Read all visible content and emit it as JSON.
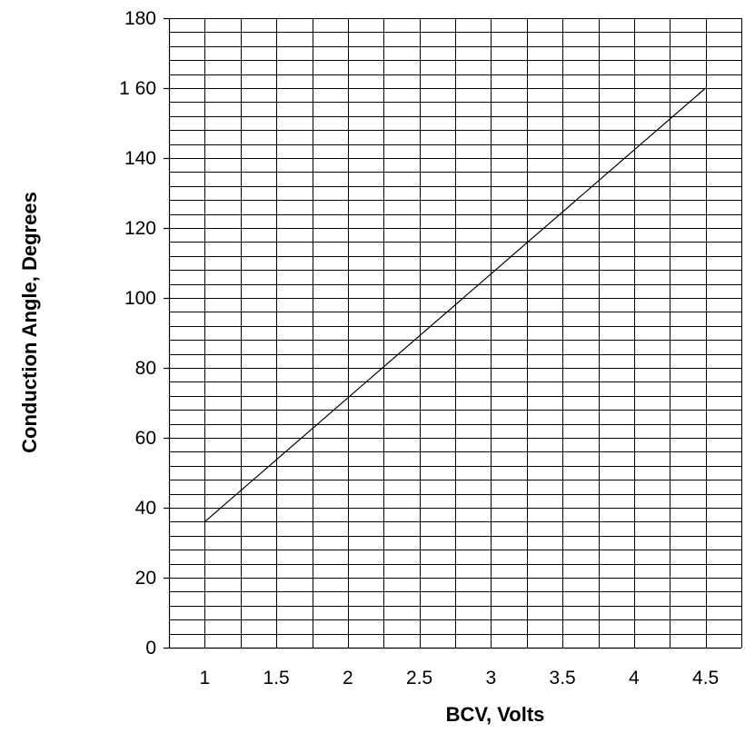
{
  "chart_data": {
    "type": "line",
    "title": "",
    "xlabel": "BCV, Volts",
    "ylabel": "Conduction Angle, Degrees",
    "xlim": [
      0.75,
      4.75
    ],
    "ylim": [
      0,
      180
    ],
    "x_tick_labels": [
      "1",
      "1.5",
      "2",
      "2.5",
      "3",
      "3.5",
      "4",
      "4.5"
    ],
    "y_tick_labels": [
      "0",
      "20",
      "40",
      "60",
      "80",
      "100",
      "120",
      "140",
      "1 60",
      "180"
    ],
    "x_ticks": [
      1,
      1.5,
      2,
      2.5,
      3,
      3.5,
      4,
      4.5
    ],
    "y_ticks": [
      0,
      20,
      40,
      60,
      80,
      100,
      120,
      140,
      160,
      180
    ],
    "x_grid": [
      1,
      1.25,
      1.5,
      1.75,
      2,
      2.25,
      2.5,
      2.75,
      3,
      3.25,
      3.5,
      3.75,
      4,
      4.25,
      4.5
    ],
    "y_grid_step": 4,
    "grid": true,
    "legend": "none",
    "series": [
      {
        "x": [
          1,
          4.5
        ],
        "y": [
          36,
          160
        ]
      }
    ]
  }
}
